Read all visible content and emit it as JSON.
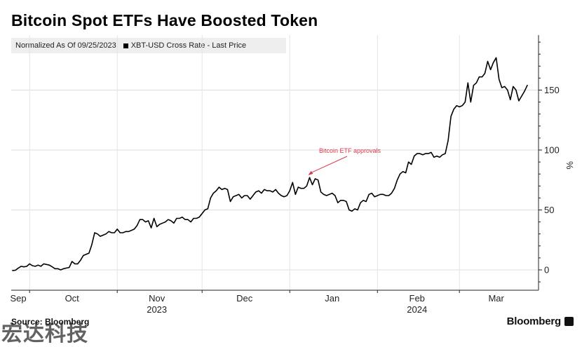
{
  "title": "Bitcoin Spot ETFs Have Boosted Token",
  "legend": {
    "normalized": "Normalized As Of 09/25/2023",
    "series_label": "XBT-USD Cross Rate - Last Price"
  },
  "source": "Source: Bloomberg",
  "brand": "Bloomberg",
  "watermark": "宏达科技",
  "chart_data": {
    "type": "line",
    "ylabel": "%",
    "ylim": [
      -17,
      195
    ],
    "yticks": [
      0,
      50,
      100,
      150
    ],
    "grid": true,
    "x_month_labels": [
      "Sep",
      "Oct",
      "Nov",
      "Dec",
      "Jan",
      "Feb",
      "Mar"
    ],
    "x_year_labels": [
      "2023",
      "2024"
    ],
    "annotation": {
      "text": "Bitcoin ETF approvals",
      "date": "2024-01-10"
    },
    "series": [
      {
        "color": "#000000",
        "points": [
          [
            "2023-09-25",
            -0.5
          ],
          [
            "2023-09-26",
            -0.3
          ],
          [
            "2023-09-27",
            1.5
          ],
          [
            "2023-09-28",
            3
          ],
          [
            "2023-09-29",
            2.5
          ],
          [
            "2023-09-30",
            3
          ],
          [
            "2023-10-01",
            5
          ],
          [
            "2023-10-02",
            3.5
          ],
          [
            "2023-10-03",
            3
          ],
          [
            "2023-10-04",
            4
          ],
          [
            "2023-10-05",
            3
          ],
          [
            "2023-10-06",
            5
          ],
          [
            "2023-10-07",
            4.5
          ],
          [
            "2023-10-08",
            4
          ],
          [
            "2023-10-09",
            2.5
          ],
          [
            "2023-10-10",
            1
          ],
          [
            "2023-10-11",
            1
          ],
          [
            "2023-10-12",
            0
          ],
          [
            "2023-10-13",
            1
          ],
          [
            "2023-10-14",
            1.5
          ],
          [
            "2023-10-15",
            2
          ],
          [
            "2023-10-16",
            7
          ],
          [
            "2023-10-17",
            5
          ],
          [
            "2023-10-18",
            5
          ],
          [
            "2023-10-19",
            8
          ],
          [
            "2023-10-20",
            12
          ],
          [
            "2023-10-21",
            13
          ],
          [
            "2023-10-22",
            14
          ],
          [
            "2023-10-23",
            21
          ],
          [
            "2023-10-24",
            31
          ],
          [
            "2023-10-25",
            30
          ],
          [
            "2023-10-26",
            28
          ],
          [
            "2023-10-27",
            29
          ],
          [
            "2023-10-28",
            30
          ],
          [
            "2023-10-29",
            32
          ],
          [
            "2023-10-30",
            31
          ],
          [
            "2023-10-31",
            31
          ],
          [
            "2023-11-01",
            34
          ],
          [
            "2023-11-02",
            31
          ],
          [
            "2023-11-03",
            31
          ],
          [
            "2023-11-04",
            32
          ],
          [
            "2023-11-05",
            32
          ],
          [
            "2023-11-06",
            33
          ],
          [
            "2023-11-07",
            34
          ],
          [
            "2023-11-08",
            37
          ],
          [
            "2023-11-09",
            42
          ],
          [
            "2023-11-10",
            42
          ],
          [
            "2023-11-11",
            40
          ],
          [
            "2023-11-12",
            41
          ],
          [
            "2023-11-13",
            35
          ],
          [
            "2023-11-14",
            43
          ],
          [
            "2023-11-15",
            36
          ],
          [
            "2023-11-16",
            38
          ],
          [
            "2023-11-17",
            39
          ],
          [
            "2023-11-18",
            40
          ],
          [
            "2023-11-19",
            42
          ],
          [
            "2023-11-20",
            41
          ],
          [
            "2023-11-21",
            39
          ],
          [
            "2023-11-22",
            43
          ],
          [
            "2023-11-23",
            43
          ],
          [
            "2023-11-24",
            44
          ],
          [
            "2023-11-25",
            42
          ],
          [
            "2023-11-26",
            42
          ],
          [
            "2023-11-27",
            40
          ],
          [
            "2023-11-28",
            43
          ],
          [
            "2023-11-29",
            43
          ],
          [
            "2023-11-30",
            44
          ],
          [
            "2023-12-01",
            47
          ],
          [
            "2023-12-02",
            50
          ],
          [
            "2023-12-03",
            51
          ],
          [
            "2023-12-04",
            60
          ],
          [
            "2023-12-05",
            64
          ],
          [
            "2023-12-06",
            66
          ],
          [
            "2023-12-07",
            69
          ],
          [
            "2023-12-08",
            67
          ],
          [
            "2023-12-09",
            68
          ],
          [
            "2023-12-10",
            67
          ],
          [
            "2023-12-11",
            57
          ],
          [
            "2023-12-12",
            61
          ],
          [
            "2023-12-13",
            62
          ],
          [
            "2023-12-14",
            63
          ],
          [
            "2023-12-15",
            60
          ],
          [
            "2023-12-16",
            62
          ],
          [
            "2023-12-17",
            62
          ],
          [
            "2023-12-18",
            59
          ],
          [
            "2023-12-19",
            62
          ],
          [
            "2023-12-20",
            65
          ],
          [
            "2023-12-21",
            66
          ],
          [
            "2023-12-22",
            64
          ],
          [
            "2023-12-23",
            67
          ],
          [
            "2023-12-24",
            66
          ],
          [
            "2023-12-25",
            66
          ],
          [
            "2023-12-26",
            65
          ],
          [
            "2023-12-27",
            67
          ],
          [
            "2023-12-28",
            64
          ],
          [
            "2023-12-29",
            62
          ],
          [
            "2023-12-30",
            61
          ],
          [
            "2023-12-31",
            62
          ],
          [
            "2024-01-01",
            66
          ],
          [
            "2024-01-02",
            73
          ],
          [
            "2024-01-03",
            63
          ],
          [
            "2024-01-04",
            69
          ],
          [
            "2024-01-05",
            68
          ],
          [
            "2024-01-06",
            68
          ],
          [
            "2024-01-07",
            70
          ],
          [
            "2024-01-08",
            77
          ],
          [
            "2024-01-09",
            71
          ],
          [
            "2024-01-10",
            76
          ],
          [
            "2024-01-11",
            75
          ],
          [
            "2024-01-12",
            65
          ],
          [
            "2024-01-13",
            63
          ],
          [
            "2024-01-14",
            62
          ],
          [
            "2024-01-15",
            63
          ],
          [
            "2024-01-16",
            64
          ],
          [
            "2024-01-17",
            62
          ],
          [
            "2024-01-18",
            56
          ],
          [
            "2024-01-19",
            58
          ],
          [
            "2024-01-20",
            58
          ],
          [
            "2024-01-21",
            57
          ],
          [
            "2024-01-22",
            50
          ],
          [
            "2024-01-23",
            49
          ],
          [
            "2024-01-24",
            51
          ],
          [
            "2024-01-25",
            50
          ],
          [
            "2024-01-26",
            56
          ],
          [
            "2024-01-27",
            58
          ],
          [
            "2024-01-28",
            57
          ],
          [
            "2024-01-29",
            63
          ],
          [
            "2024-01-30",
            64
          ],
          [
            "2024-01-31",
            61
          ],
          [
            "2024-02-01",
            62
          ],
          [
            "2024-02-02",
            63
          ],
          [
            "2024-02-03",
            63
          ],
          [
            "2024-02-04",
            62
          ],
          [
            "2024-02-05",
            62
          ],
          [
            "2024-02-06",
            64
          ],
          [
            "2024-02-07",
            68
          ],
          [
            "2024-02-08",
            75
          ],
          [
            "2024-02-09",
            80
          ],
          [
            "2024-02-10",
            82
          ],
          [
            "2024-02-11",
            81
          ],
          [
            "2024-02-12",
            90
          ],
          [
            "2024-02-13",
            88
          ],
          [
            "2024-02-14",
            95
          ],
          [
            "2024-02-15",
            97
          ],
          [
            "2024-02-16",
            97
          ],
          [
            "2024-02-17",
            96
          ],
          [
            "2024-02-18",
            97
          ],
          [
            "2024-02-19",
            97
          ],
          [
            "2024-02-20",
            98
          ],
          [
            "2024-02-21",
            94
          ],
          [
            "2024-02-22",
            95
          ],
          [
            "2024-02-23",
            94
          ],
          [
            "2024-02-24",
            96
          ],
          [
            "2024-02-25",
            97
          ],
          [
            "2024-02-26",
            108
          ],
          [
            "2024-02-27",
            128
          ],
          [
            "2024-02-28",
            134
          ],
          [
            "2024-02-29",
            137
          ],
          [
            "2024-03-01",
            136
          ],
          [
            "2024-03-02",
            137
          ],
          [
            "2024-03-03",
            140
          ],
          [
            "2024-03-04",
            156
          ],
          [
            "2024-03-05",
            140
          ],
          [
            "2024-03-06",
            154
          ],
          [
            "2024-03-07",
            156
          ],
          [
            "2024-03-08",
            161
          ],
          [
            "2024-03-09",
            161
          ],
          [
            "2024-03-10",
            164
          ],
          [
            "2024-03-11",
            174
          ],
          [
            "2024-03-12",
            167
          ],
          [
            "2024-03-13",
            173
          ],
          [
            "2024-03-14",
            177
          ],
          [
            "2024-03-15",
            159
          ],
          [
            "2024-03-16",
            152
          ],
          [
            "2024-03-17",
            153
          ],
          [
            "2024-03-18",
            150
          ],
          [
            "2024-03-19",
            142
          ],
          [
            "2024-03-20",
            153
          ],
          [
            "2024-03-21",
            150
          ],
          [
            "2024-03-22",
            141
          ],
          [
            "2024-03-23",
            145
          ],
          [
            "2024-03-24",
            149
          ],
          [
            "2024-03-25",
            154
          ]
        ]
      }
    ]
  }
}
